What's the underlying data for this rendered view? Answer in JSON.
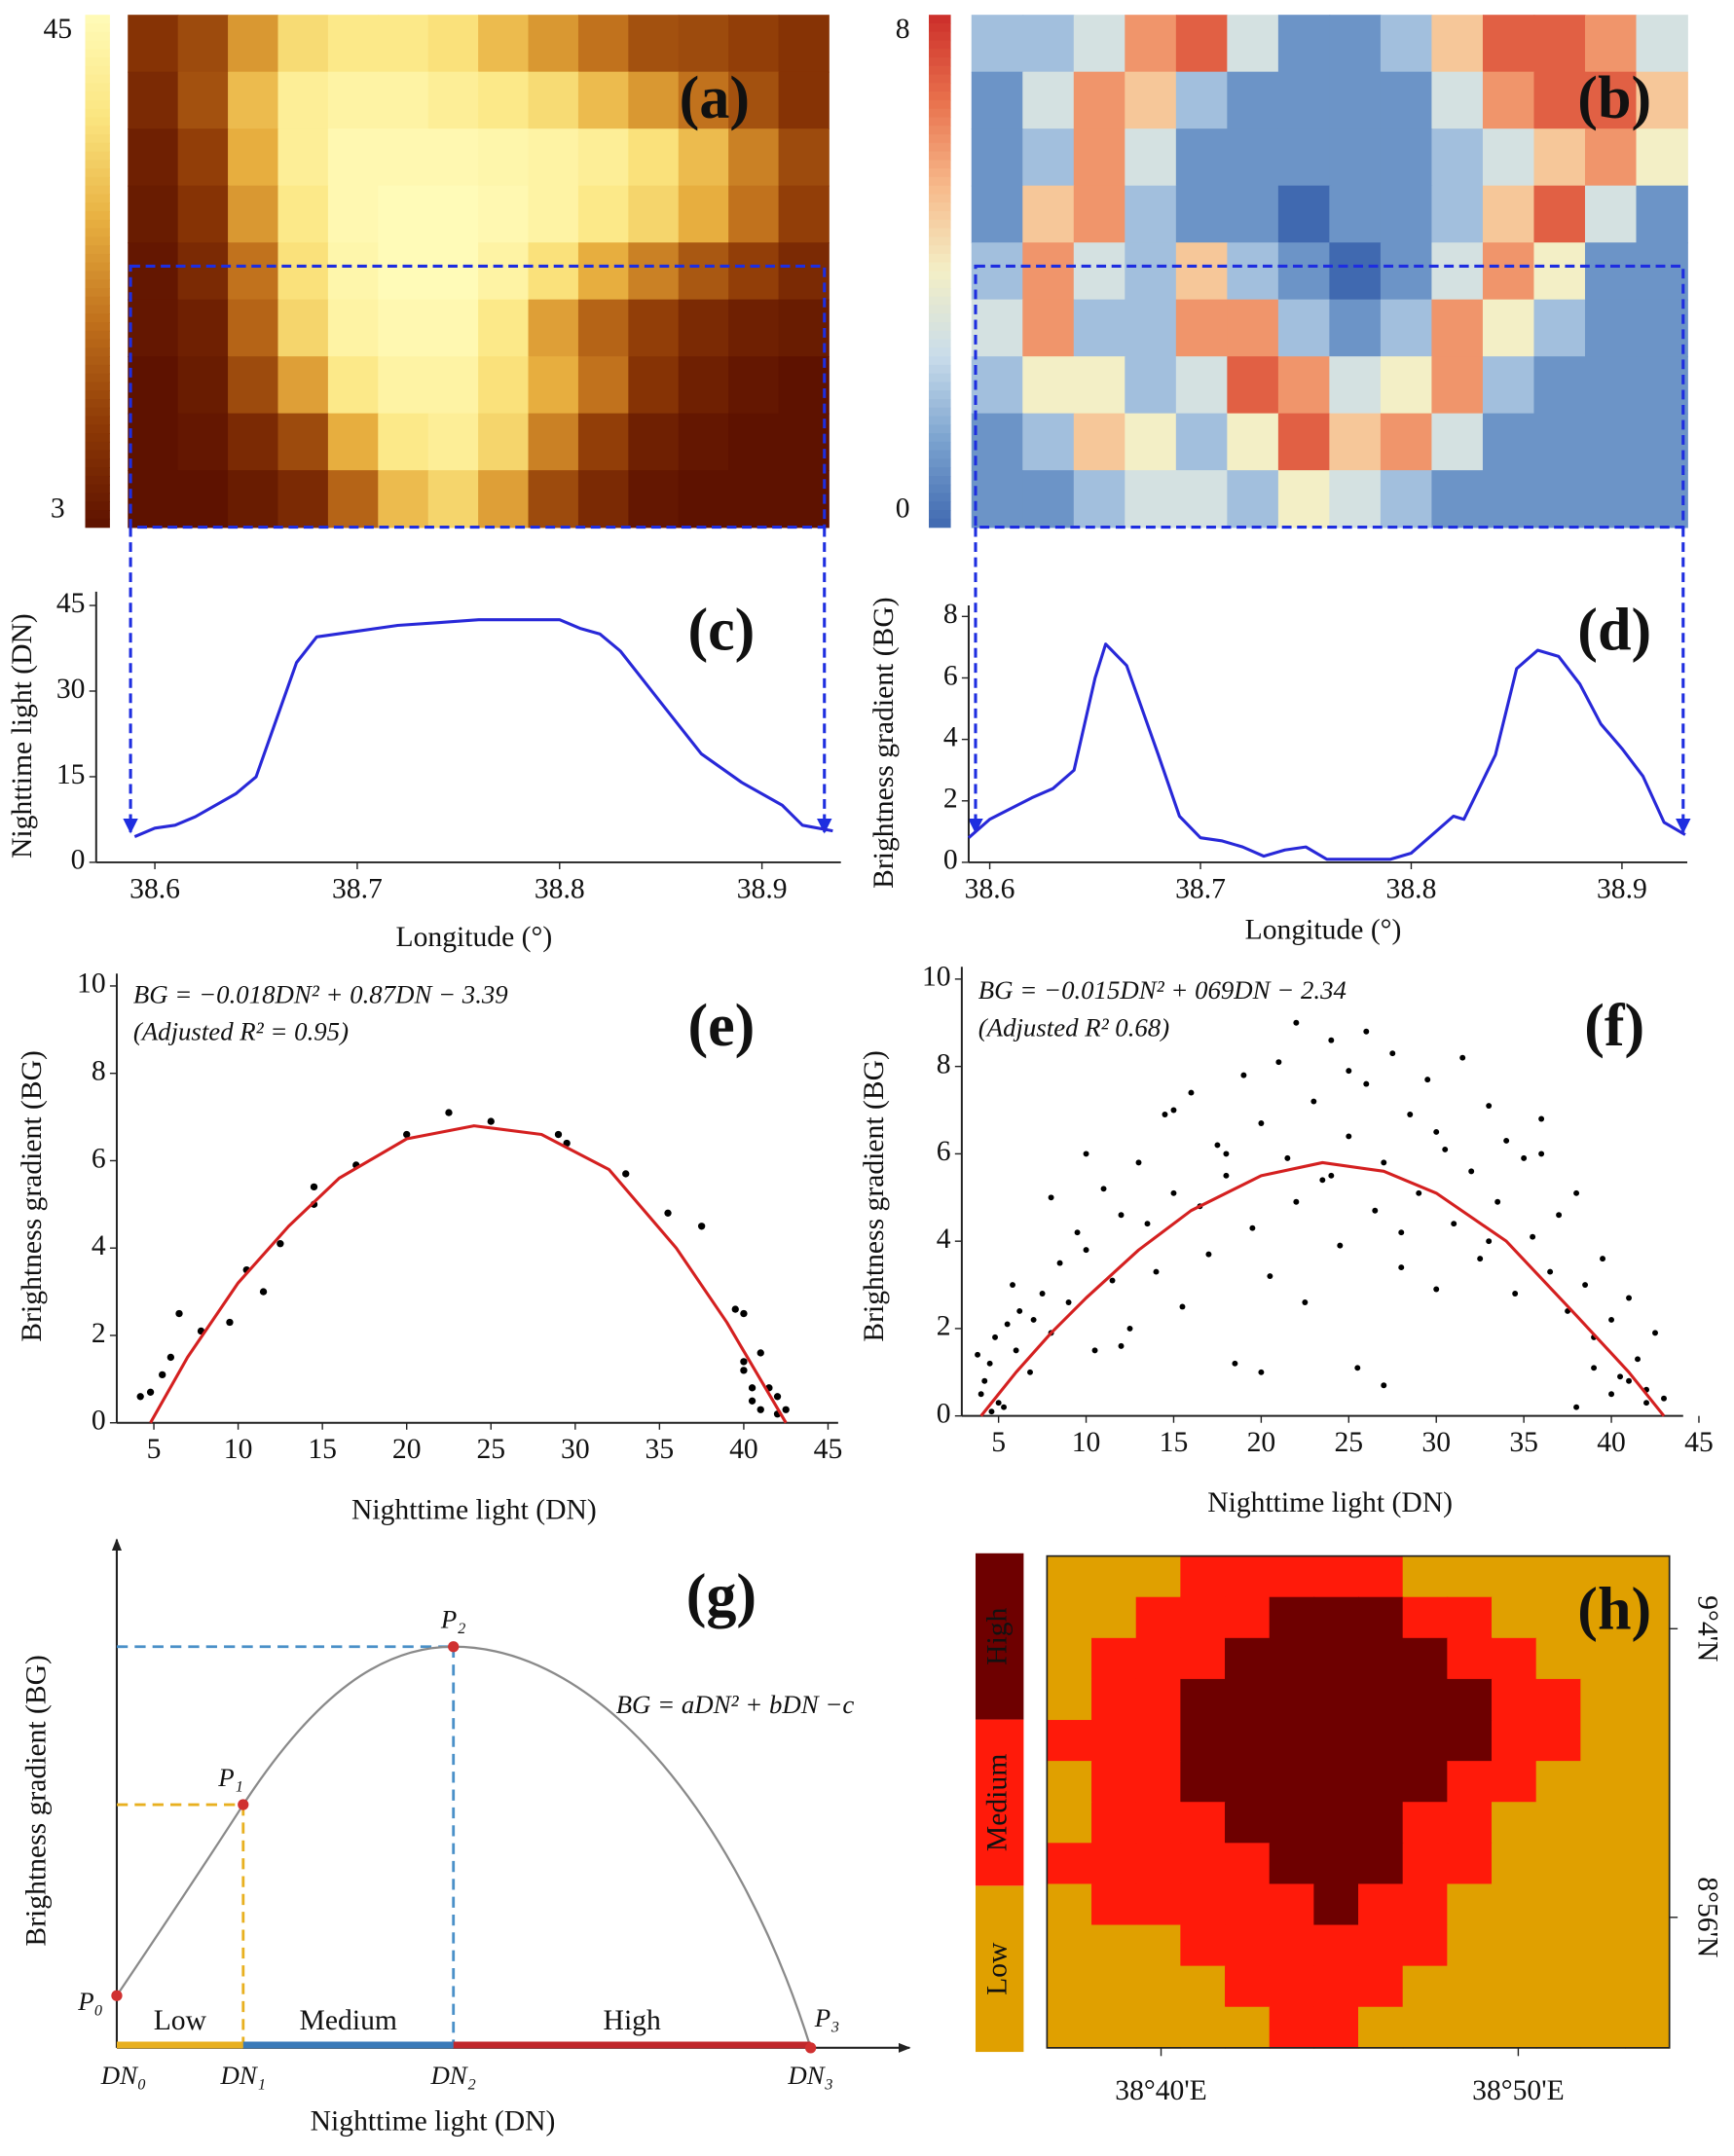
{
  "chart_data": [
    {
      "type": "heatmap",
      "title": "(a)",
      "clim": [
        3,
        45
      ],
      "colorbar_ticks": [
        45,
        3
      ],
      "colormap": [
        "#5e1200",
        "#8e3a06",
        "#c0701c",
        "#e8b040",
        "#fbe580",
        "#fffbb8"
      ],
      "grid": [
        [
          10,
          14,
          25,
          35,
          38,
          38,
          36,
          30,
          25,
          20,
          15,
          14,
          12,
          10
        ],
        [
          8,
          15,
          30,
          40,
          42,
          42,
          40,
          38,
          35,
          30,
          25,
          20,
          15,
          10
        ],
        [
          6,
          12,
          28,
          40,
          44,
          44,
          44,
          43,
          42,
          40,
          36,
          30,
          22,
          14
        ],
        [
          5,
          10,
          25,
          38,
          44,
          45,
          45,
          44,
          42,
          38,
          34,
          28,
          20,
          12
        ],
        [
          4,
          8,
          20,
          36,
          43,
          45,
          45,
          42,
          36,
          28,
          22,
          16,
          12,
          8
        ],
        [
          4,
          6,
          18,
          34,
          42,
          44,
          44,
          38,
          26,
          18,
          12,
          8,
          6,
          5
        ],
        [
          3,
          5,
          14,
          26,
          38,
          42,
          42,
          36,
          28,
          20,
          10,
          6,
          4,
          3
        ],
        [
          3,
          4,
          8,
          14,
          28,
          38,
          40,
          34,
          22,
          12,
          6,
          4,
          3,
          3
        ],
        [
          3,
          3,
          5,
          8,
          18,
          30,
          34,
          26,
          14,
          8,
          4,
          3,
          3,
          3
        ]
      ]
    },
    {
      "type": "heatmap",
      "title": "(b)",
      "clim": [
        0,
        8
      ],
      "colorbar_ticks": [
        8,
        0
      ],
      "colormap": [
        "#4069b0",
        "#7aa2cf",
        "#c9dcea",
        "#f3efc6",
        "#f7b98a",
        "#e8704c",
        "#cc2e2a"
      ],
      "grid": [
        [
          2,
          2,
          3,
          6,
          7,
          3,
          1,
          1,
          2,
          5,
          7,
          7,
          6,
          3
        ],
        [
          1,
          3,
          6,
          5,
          2,
          1,
          1,
          1,
          1,
          3,
          6,
          7,
          7,
          5
        ],
        [
          1,
          2,
          6,
          3,
          1,
          1,
          1,
          1,
          1,
          2,
          3,
          5,
          6,
          4
        ],
        [
          1,
          5,
          6,
          2,
          1,
          1,
          0,
          1,
          1,
          2,
          5,
          7,
          3,
          1
        ],
        [
          2,
          6,
          3,
          2,
          5,
          2,
          1,
          0,
          1,
          3,
          6,
          4,
          1,
          1
        ],
        [
          3,
          6,
          2,
          2,
          6,
          6,
          2,
          1,
          2,
          6,
          4,
          2,
          1,
          1
        ],
        [
          2,
          4,
          4,
          2,
          3,
          7,
          6,
          3,
          4,
          6,
          2,
          1,
          1,
          1
        ],
        [
          1,
          2,
          5,
          4,
          2,
          4,
          7,
          5,
          6,
          3,
          1,
          1,
          1,
          1
        ],
        [
          1,
          1,
          2,
          3,
          3,
          2,
          4,
          3,
          2,
          1,
          1,
          1,
          1,
          1
        ]
      ]
    },
    {
      "type": "line",
      "title": "(c)",
      "xlabel": "Longitude (°)",
      "ylabel": "Nighttime light (DN)",
      "color": "#2828d8",
      "x": [
        38.59,
        38.6,
        38.61,
        38.62,
        38.64,
        38.65,
        38.66,
        38.67,
        38.68,
        38.7,
        38.72,
        38.74,
        38.76,
        38.8,
        38.81,
        38.82,
        38.83,
        38.85,
        38.87,
        38.89,
        38.91,
        38.92,
        38.935
      ],
      "values": [
        4.5,
        6,
        6.5,
        8,
        12,
        15,
        25,
        35,
        39.5,
        40.5,
        41.5,
        42,
        42.5,
        42.5,
        41,
        40,
        37,
        28,
        19,
        14,
        10,
        6.5,
        5.5
      ],
      "xlim": [
        38.571,
        38.939
      ],
      "xticks": [
        38.6,
        38.7,
        38.8,
        38.9
      ],
      "ylim": [
        0,
        45
      ],
      "yticks": [
        0,
        15,
        30,
        45
      ]
    },
    {
      "type": "line",
      "title": "(d)",
      "xlabel": "Longitude (°)",
      "ylabel": "Brightness gradient (BG)",
      "color": "#2828d8",
      "x": [
        38.59,
        38.6,
        38.62,
        38.63,
        38.64,
        38.65,
        38.655,
        38.665,
        38.68,
        38.69,
        38.7,
        38.71,
        38.72,
        38.73,
        38.74,
        38.75,
        38.76,
        38.79,
        38.8,
        38.81,
        38.82,
        38.825,
        38.84,
        38.85,
        38.86,
        38.87,
        38.88,
        38.89,
        38.9,
        38.91,
        38.92,
        38.93
      ],
      "values": [
        0.8,
        1.4,
        2.1,
        2.4,
        3,
        6,
        7.1,
        6.4,
        3.5,
        1.5,
        0.8,
        0.7,
        0.5,
        0.2,
        0.4,
        0.5,
        0.1,
        0.1,
        0.3,
        0.9,
        1.5,
        1.4,
        3.5,
        6.3,
        6.9,
        6.7,
        5.8,
        4.5,
        3.7,
        2.8,
        1.3,
        0.9
      ],
      "xlim": [
        38.59,
        38.931
      ],
      "xticks": [
        38.6,
        38.7,
        38.8,
        38.9
      ],
      "ylim": [
        0,
        8
      ],
      "yticks": [
        0,
        2,
        4,
        6,
        8
      ]
    },
    {
      "type": "scatter",
      "title": "(e)",
      "xlabel": "Nighttime light (DN)",
      "ylabel": "Brightness gradient (BG)",
      "color": "#000000",
      "annotations": [
        "BG = −0.018DN² + 0.87DN − 3.39",
        "(Adjusted R² = 0.95)"
      ],
      "x": [
        4.2,
        4.8,
        5.5,
        6,
        6.5,
        7.8,
        9.5,
        10.5,
        11.5,
        12.5,
        14.5,
        14.5,
        17,
        20,
        22.5,
        25,
        29,
        29.5,
        33,
        35.5,
        37.5,
        39.5,
        40,
        40,
        40.5,
        40.5,
        41,
        41.5,
        42,
        42.5,
        41,
        40,
        42
      ],
      "values": [
        0.6,
        0.7,
        1.1,
        1.5,
        2.5,
        2.1,
        2.3,
        3.5,
        3,
        4.1,
        5,
        5.4,
        5.9,
        6.6,
        7.1,
        6.9,
        6.6,
        6.4,
        5.7,
        4.8,
        4.5,
        2.6,
        1.4,
        1.2,
        0.8,
        0.5,
        0.3,
        0.8,
        0.2,
        0.3,
        1.6,
        2.5,
        0.6
      ],
      "fit": {
        "color": "#d42020",
        "x": [
          4.8,
          7,
          10,
          13,
          16,
          20,
          24,
          28,
          32,
          36,
          39,
          42.5
        ],
        "values": [
          0,
          1.5,
          3.2,
          4.5,
          5.6,
          6.5,
          6.8,
          6.6,
          5.8,
          4,
          2.3,
          0
        ]
      },
      "xlim": [
        2.8,
        45.6
      ],
      "xticks": [
        5,
        10,
        15,
        20,
        25,
        30,
        35,
        40,
        45
      ],
      "ylim": [
        0,
        10
      ],
      "yticks": [
        0,
        2,
        4,
        6,
        8,
        10
      ]
    },
    {
      "type": "scatter",
      "title": "(f)",
      "xlabel": "Nighttime light (DN)",
      "ylabel": "Brightness gradient (BG)",
      "color": "#000000",
      "annotations": [
        "BG = −0.015DN² + 069DN − 2.34",
        "(Adjusted R²  0.68)"
      ],
      "x": [
        4,
        4.5,
        5,
        5.5,
        6,
        4.2,
        4.8,
        5.3,
        6.2,
        6.8,
        7.5,
        8,
        3.8,
        4.6,
        5.8,
        7,
        8.5,
        9,
        9.5,
        10,
        10.5,
        11,
        11.5,
        12,
        12.5,
        13,
        13.5,
        14,
        14.5,
        15,
        15.5,
        16,
        16.5,
        17,
        17.5,
        18,
        18.5,
        19,
        19.5,
        20,
        20.5,
        21,
        21.5,
        22,
        22.5,
        23,
        23.5,
        24,
        24.5,
        25,
        25.5,
        26,
        26.5,
        27,
        27.5,
        28,
        28.5,
        29,
        29.5,
        30,
        30.5,
        31,
        31.5,
        32,
        32.5,
        33,
        33.5,
        34,
        34.5,
        35,
        35.5,
        36,
        36.5,
        37,
        37.5,
        38,
        38.5,
        39,
        39.5,
        40,
        40.5,
        41,
        41.5,
        42,
        42.5,
        43,
        38,
        39,
        40,
        41,
        42,
        15,
        18,
        22,
        26,
        28,
        30,
        12,
        10,
        8,
        20,
        24,
        33,
        36,
        25,
        27
      ],
      "values": [
        0.5,
        1.2,
        0.3,
        2.1,
        1.5,
        0.8,
        1.8,
        0.2,
        2.4,
        1.0,
        2.8,
        1.9,
        1.4,
        0.1,
        3.0,
        2.2,
        3.5,
        2.6,
        4.2,
        3.8,
        1.5,
        5.2,
        3.1,
        4.6,
        2.0,
        5.8,
        4.4,
        3.3,
        6.9,
        5.1,
        2.5,
        7.4,
        4.8,
        3.7,
        6.2,
        5.5,
        1.2,
        7.8,
        4.3,
        6.7,
        3.2,
        8.1,
        5.9,
        4.9,
        2.6,
        7.2,
        5.4,
        8.6,
        3.9,
        6.4,
        1.1,
        7.6,
        4.7,
        5.8,
        8.3,
        3.4,
        6.9,
        5.1,
        7.7,
        2.9,
        6.1,
        4.4,
        8.2,
        5.6,
        3.6,
        7.1,
        4.9,
        6.3,
        2.8,
        5.9,
        4.1,
        6.8,
        3.3,
        4.6,
        2.4,
        5.1,
        3.0,
        1.8,
        3.6,
        2.2,
        0.9,
        2.7,
        1.3,
        0.6,
        1.9,
        0.4,
        0.2,
        1.1,
        0.5,
        0.8,
        0.3,
        7.0,
        6.0,
        9.0,
        8.8,
        4.2,
        6.5,
        1.6,
        6.0,
        5.0,
        1.0,
        5.5,
        4.0,
        6.0,
        7.9,
        0.7
      ],
      "fit": {
        "color": "#d42020",
        "x": [
          4,
          6,
          8,
          10,
          13,
          16,
          20,
          23.5,
          27,
          30,
          34,
          38,
          41,
          43
        ],
        "values": [
          0,
          1.0,
          1.9,
          2.7,
          3.8,
          4.7,
          5.5,
          5.8,
          5.6,
          5.1,
          4.0,
          2.3,
          1.0,
          0
        ]
      },
      "xlim": [
        2.9,
        44.1
      ],
      "xticks": [
        5,
        10,
        15,
        20,
        25,
        30,
        35,
        40,
        45
      ],
      "ylim": [
        0,
        10
      ],
      "yticks": [
        0,
        2,
        4,
        6,
        8,
        10
      ]
    },
    {
      "type": "schematic",
      "title": "(g)",
      "xlabel": "Nighttime light (DN)",
      "ylabel": "Brightness gradient (BG)",
      "equation": "BG = aDN² + bDN −c",
      "points": [
        "P₀",
        "P₁",
        "P₂",
        "P₃"
      ],
      "breaks": [
        "DN₀",
        "DN₁",
        "DN₂",
        "DN₃"
      ],
      "zones": [
        {
          "name": "Low",
          "color": "#e8b020"
        },
        {
          "name": "Medium",
          "color": "#3a7ab8"
        },
        {
          "name": "High",
          "color": "#c0282c"
        }
      ]
    },
    {
      "type": "classmap",
      "title": "(h)",
      "classes": [
        "Low",
        "Medium",
        "High"
      ],
      "colors": [
        "#e0a000",
        "#ff1a0a",
        "#6e0000"
      ],
      "xlim": [
        38.6135,
        38.9038
      ],
      "ylim": [
        8.873,
        9.1003
      ],
      "xticks": [
        {
          "value": 38.6667,
          "label": "38°40'E"
        },
        {
          "value": 38.8333,
          "label": "38°50'E"
        }
      ],
      "yticks": [
        {
          "value": 9.0667,
          "label": "9°4'N"
        },
        {
          "value": 8.9333,
          "label": "8°56'N"
        }
      ],
      "grid": [
        [
          0,
          0,
          0,
          1,
          1,
          1,
          1,
          1,
          0,
          0,
          0,
          0,
          0,
          0
        ],
        [
          0,
          0,
          1,
          1,
          1,
          2,
          2,
          2,
          1,
          1,
          0,
          0,
          0,
          0
        ],
        [
          0,
          1,
          1,
          1,
          2,
          2,
          2,
          2,
          2,
          1,
          1,
          0,
          0,
          0
        ],
        [
          0,
          1,
          1,
          2,
          2,
          2,
          2,
          2,
          2,
          2,
          1,
          1,
          0,
          0
        ],
        [
          1,
          1,
          1,
          2,
          2,
          2,
          2,
          2,
          2,
          2,
          1,
          1,
          0,
          0
        ],
        [
          0,
          1,
          1,
          2,
          2,
          2,
          2,
          2,
          2,
          1,
          1,
          0,
          0,
          0
        ],
        [
          0,
          1,
          1,
          1,
          2,
          2,
          2,
          2,
          1,
          1,
          0,
          0,
          0,
          0
        ],
        [
          1,
          1,
          1,
          1,
          1,
          2,
          2,
          2,
          1,
          1,
          0,
          0,
          0,
          0
        ],
        [
          0,
          1,
          1,
          1,
          1,
          1,
          2,
          1,
          1,
          0,
          0,
          0,
          0,
          0
        ],
        [
          0,
          0,
          0,
          1,
          1,
          1,
          1,
          1,
          1,
          0,
          0,
          0,
          0,
          0
        ],
        [
          0,
          0,
          0,
          0,
          1,
          1,
          1,
          1,
          0,
          0,
          0,
          0,
          0,
          0
        ],
        [
          0,
          0,
          0,
          0,
          0,
          1,
          1,
          0,
          0,
          0,
          0,
          0,
          0,
          0
        ]
      ]
    }
  ]
}
